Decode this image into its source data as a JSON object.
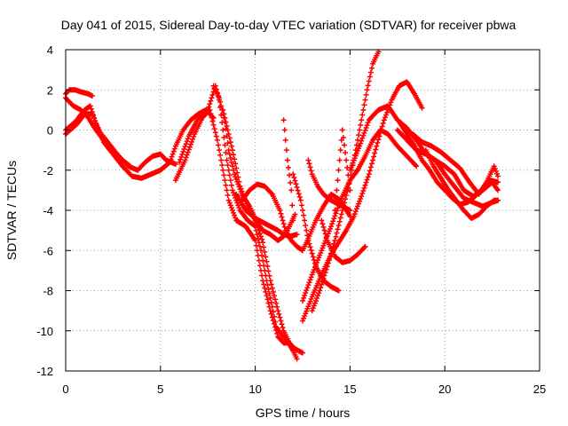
{
  "chart_data": {
    "type": "scatter",
    "title": "Day 041 of 2015, Sidereal Day-to-day VTEC variation (SDTVAR) for receiver pbwa",
    "xlabel": "GPS time / hours",
    "ylabel": "SDTVAR / TECUs",
    "xlim": [
      0,
      25
    ],
    "ylim": [
      -12,
      4
    ],
    "xticks": [
      "0",
      "5",
      "10",
      "15",
      "20",
      "25"
    ],
    "yticks": [
      "4",
      "2",
      "0",
      "-2",
      "-4",
      "-6",
      "-8",
      "-10",
      "-12"
    ],
    "grid": true,
    "marker": "+",
    "color": "#ff0000",
    "series": [
      {
        "x": [
          0.0,
          0.5,
          1.0,
          1.3,
          1.6,
          2.0,
          2.5,
          3.0,
          3.5,
          4.0,
          4.5,
          5.0,
          5.5,
          5.8,
          6.2,
          6.6,
          7.0,
          7.4,
          7.8
        ],
        "y": [
          0.0,
          0.4,
          1.0,
          1.2,
          0.3,
          -0.6,
          -1.2,
          -1.8,
          -2.3,
          -2.4,
          -2.2,
          -2.0,
          -1.6,
          -0.8,
          0.0,
          0.5,
          0.8,
          1.0,
          0.6
        ]
      },
      {
        "x": [
          0.0,
          0.2,
          0.5,
          0.8,
          1.2,
          1.4
        ],
        "y": [
          1.8,
          2.0,
          2.0,
          1.9,
          1.8,
          1.7
        ]
      },
      {
        "x": [
          0.0,
          0.4,
          0.8,
          1.2,
          1.6,
          2.0,
          2.5,
          3.0,
          3.4
        ],
        "y": [
          1.6,
          1.2,
          1.0,
          0.6,
          0.0,
          -0.5,
          -1.0,
          -1.5,
          -1.8
        ]
      },
      {
        "x": [
          0.0,
          0.6,
          1.0,
          1.4,
          1.8,
          2.3,
          2.8,
          3.3,
          3.8,
          4.2,
          4.6,
          5.0,
          5.3,
          5.8
        ],
        "y": [
          -0.2,
          0.3,
          0.8,
          0.8,
          -0.1,
          -0.7,
          -1.3,
          -1.8,
          -2.0,
          -1.6,
          -1.3,
          -1.2,
          -1.5,
          -1.7
        ]
      },
      {
        "x": [
          5.8,
          6.3,
          6.8,
          7.2,
          7.6,
          8.0,
          8.3,
          8.6,
          9.0,
          9.5,
          10.0,
          10.4,
          10.8,
          11.2,
          11.5,
          11.8,
          12.1,
          12.5
        ],
        "y": [
          -2.5,
          -1.5,
          -0.2,
          0.6,
          1.0,
          -0.5,
          -2.0,
          -3.5,
          -4.5,
          -4.8,
          -5.5,
          -7.5,
          -9.0,
          -10.3,
          -10.6,
          -10.6,
          -10.9,
          -11.1
        ]
      },
      {
        "x": [
          6.0,
          6.5,
          7.0,
          7.5,
          7.9,
          8.1,
          8.3,
          8.5,
          8.8,
          9.2,
          9.6,
          10.0,
          10.3,
          10.6,
          10.9,
          11.1,
          11.4,
          11.7,
          12.0,
          12.2
        ],
        "y": [
          -1.6,
          -0.3,
          0.6,
          1.0,
          2.2,
          1.5,
          0.0,
          -1.5,
          -3.0,
          -4.0,
          -4.5,
          -4.8,
          -6.0,
          -7.5,
          -8.8,
          -9.8,
          -10.2,
          -10.5,
          -11.0,
          -11.4
        ]
      },
      {
        "x": [
          7.8,
          8.1,
          8.4,
          8.6,
          8.9,
          9.3,
          9.7,
          10.0,
          10.4,
          10.8,
          11.2,
          11.5,
          11.8,
          12.0
        ],
        "y": [
          2.2,
          1.6,
          0.4,
          -1.0,
          -2.2,
          -3.2,
          -3.8,
          -4.4,
          -5.6,
          -7.5,
          -9.0,
          -10.0,
          -10.6,
          -11.0
        ]
      },
      {
        "x": [
          8.3,
          8.8,
          9.2,
          9.6,
          10.0,
          10.4,
          10.8,
          11.2,
          11.5,
          11.7,
          11.9,
          12.1
        ],
        "y": [
          1.0,
          -1.0,
          -2.8,
          -3.8,
          -4.5,
          -5.0,
          -5.2,
          -5.5,
          -5.3,
          -5.0,
          -4.6,
          -4.2
        ]
      },
      {
        "x": [
          9.0,
          9.5,
          10.0,
          10.4,
          10.8,
          11.2,
          11.5,
          11.8,
          12.2
        ],
        "y": [
          -3.2,
          -4.0,
          -4.4,
          -4.6,
          -4.8,
          -5.0,
          -5.2,
          -5.3,
          -5.2
        ]
      },
      {
        "x": [
          9.3,
          9.7,
          10.1,
          10.5,
          10.9,
          11.3,
          11.6,
          11.9,
          12.2,
          12.5,
          12.8,
          13.2,
          13.6,
          14.0,
          14.5,
          15.0
        ],
        "y": [
          -3.5,
          -3.0,
          -2.7,
          -2.8,
          -3.2,
          -4.0,
          -5.0,
          -5.5,
          -5.8,
          -6.0,
          -5.4,
          -4.5,
          -3.8,
          -3.2,
          -3.5,
          -4.3
        ]
      },
      {
        "x": [
          11.5,
          11.7,
          11.9,
          12.0
        ],
        "y": [
          0.5,
          -1.5,
          -3.0,
          -4.5
        ]
      },
      {
        "x": [
          12.0,
          12.4,
          12.8,
          13.2,
          13.6,
          14.0,
          14.4
        ],
        "y": [
          -2.2,
          -3.5,
          -5.5,
          -6.8,
          -7.5,
          -7.8,
          -8.0
        ]
      },
      {
        "x": [
          12.5,
          13.0,
          13.5,
          14.0,
          14.5,
          15.0,
          15.4,
          15.8,
          16.2,
          16.6,
          17.0,
          17.5,
          18.0,
          18.5
        ],
        "y": [
          -8.5,
          -7.2,
          -6.0,
          -4.8,
          -3.5,
          -2.5,
          -2.0,
          -1.3,
          -0.5,
          0.0,
          -0.2,
          -0.8,
          -1.3,
          -1.8
        ]
      },
      {
        "x": [
          12.5,
          13.0,
          13.5,
          14.0,
          14.4,
          14.8,
          15.2,
          15.6,
          16.0,
          16.4,
          16.8,
          17.2,
          17.6,
          18.0,
          18.4,
          18.8
        ],
        "y": [
          -9.5,
          -8.3,
          -7.2,
          -6.2,
          -5.6,
          -5.0,
          -4.3,
          -3.3,
          -2.2,
          -0.8,
          0.5,
          1.5,
          2.2,
          2.4,
          1.8,
          1.1
        ]
      },
      {
        "x": [
          13.0,
          13.4,
          13.8,
          14.2,
          14.6,
          15.0,
          15.3,
          15.6,
          15.9,
          16.2,
          16.5
        ],
        "y": [
          -9.0,
          -8.0,
          -6.8,
          -5.5,
          -4.0,
          -2.5,
          -1.0,
          0.5,
          2.0,
          3.3,
          3.9
        ]
      },
      {
        "x": [
          12.8,
          13.0,
          13.3,
          13.6,
          14.0,
          14.4,
          14.8,
          15.0
        ],
        "y": [
          -1.5,
          -2.2,
          -2.8,
          -3.2,
          -3.5,
          -3.7,
          -3.9,
          -4.0
        ]
      },
      {
        "x": [
          13.5,
          13.8,
          14.2,
          14.6,
          15.0,
          15.4,
          15.8
        ],
        "y": [
          -4.5,
          -5.5,
          -6.3,
          -6.6,
          -6.5,
          -6.2,
          -5.8
        ]
      },
      {
        "x": [
          14.2,
          14.4,
          14.6,
          14.8,
          15.0
        ],
        "y": [
          -4.0,
          -2.0,
          0.0,
          -1.5,
          -3.0
        ]
      },
      {
        "x": [
          15.0,
          15.5,
          16.0,
          16.5,
          17.0,
          17.5,
          18.0,
          18.5,
          19.0,
          19.5,
          20.0,
          20.5,
          21.0,
          21.5,
          22.0,
          22.5,
          22.8
        ],
        "y": [
          -2.0,
          -0.8,
          0.5,
          1.0,
          1.2,
          0.5,
          0.1,
          -0.5,
          -1.2,
          -1.5,
          -2.2,
          -2.8,
          -3.4,
          -3.6,
          -3.8,
          -3.6,
          -3.5
        ]
      },
      {
        "x": [
          17.5,
          18.0,
          18.5,
          19.0,
          19.5,
          20.0,
          20.5,
          21.0,
          21.5,
          22.0,
          22.5,
          22.8
        ],
        "y": [
          0.0,
          -0.5,
          -1.0,
          -1.2,
          -1.5,
          -1.8,
          -2.2,
          -3.0,
          -3.3,
          -3.0,
          -2.6,
          -3.0
        ]
      },
      {
        "x": [
          17.6,
          18.0,
          18.4,
          18.8,
          19.2,
          19.6,
          20.0,
          20.4,
          20.8,
          21.2,
          21.6,
          22.0,
          22.4,
          22.8
        ],
        "y": [
          0.4,
          -0.2,
          -0.8,
          -1.5,
          -2.0,
          -2.6,
          -3.0,
          -3.4,
          -3.7,
          -3.6,
          -3.3,
          -2.9,
          -2.5,
          -2.6
        ]
      },
      {
        "x": [
          19.0,
          19.4,
          19.8,
          20.2,
          20.6,
          21.0,
          21.4,
          21.8,
          22.2,
          22.6,
          22.8
        ],
        "y": [
          -1.0,
          -1.8,
          -2.4,
          -3.0,
          -3.5,
          -4.0,
          -4.4,
          -4.2,
          -3.8,
          -3.5,
          -3.5
        ]
      },
      {
        "x": [
          18.3,
          18.8,
          19.3,
          19.8,
          20.3,
          20.8,
          21.3,
          21.8,
          22.2,
          22.6,
          22.8
        ],
        "y": [
          -0.2,
          -0.6,
          -0.8,
          -1.1,
          -1.5,
          -1.9,
          -2.6,
          -3.2,
          -2.6,
          -1.8,
          -2.3
        ]
      }
    ]
  }
}
